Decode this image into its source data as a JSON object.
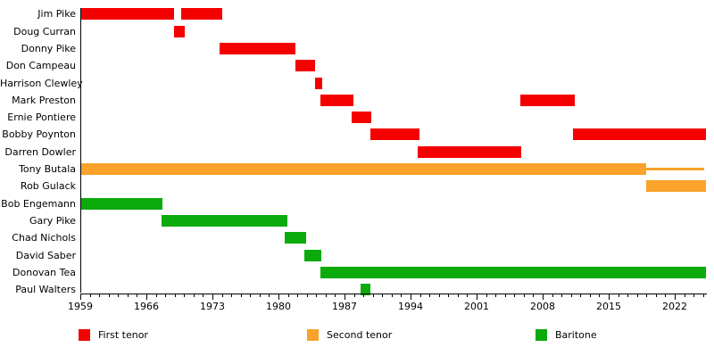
{
  "chart_data": {
    "type": "timeline",
    "title": "",
    "description": "Band membership timeline: horizontal colored bars per member by role over years",
    "x_axis": {
      "min": 1959,
      "max": 2025.4,
      "minor_tick_interval": 1,
      "major_tick_interval": 7,
      "major_tick_labels": [
        "1959",
        "1966",
        "1973",
        "1980",
        "1987",
        "1994",
        "2001",
        "2008",
        "2015",
        "2022"
      ]
    },
    "roles": {
      "first_tenor": {
        "label": "First tenor",
        "color": "#f40000"
      },
      "second_tenor": {
        "label": "Second tenor",
        "color": "#faa22a"
      },
      "baritone": {
        "label": "Baritone",
        "color": "#0cab0c"
      }
    },
    "members": [
      {
        "name": "Jim Pike",
        "role": "first_tenor",
        "segments": [
          {
            "start": 1959,
            "end": 1968.9
          },
          {
            "start": 1969.7,
            "end": 1974
          }
        ]
      },
      {
        "name": "Doug Curran",
        "role": "first_tenor",
        "segments": [
          {
            "start": 1968.9,
            "end": 1970.1
          }
        ]
      },
      {
        "name": "Donny Pike",
        "role": "first_tenor",
        "segments": [
          {
            "start": 1973.8,
            "end": 1981.8
          }
        ]
      },
      {
        "name": "Don Campeau",
        "role": "first_tenor",
        "segments": [
          {
            "start": 1981.8,
            "end": 1983.9
          }
        ]
      },
      {
        "name": "Harrison Clewley",
        "role": "first_tenor",
        "segments": [
          {
            "start": 1983.9,
            "end": 1984.6
          }
        ]
      },
      {
        "name": "Mark Preston",
        "role": "first_tenor",
        "segments": [
          {
            "start": 1984.4,
            "end": 1987.9
          },
          {
            "start": 2005.6,
            "end": 2011.4
          }
        ]
      },
      {
        "name": "Ernie Pontiere",
        "role": "first_tenor",
        "segments": [
          {
            "start": 1987.8,
            "end": 1989.8
          }
        ]
      },
      {
        "name": "Bobby Poynton",
        "role": "first_tenor",
        "segments": [
          {
            "start": 1989.7,
            "end": 1994.9
          },
          {
            "start": 2011.2,
            "end": 2025.3
          }
        ]
      },
      {
        "name": "Darren Dowler",
        "role": "first_tenor",
        "segments": [
          {
            "start": 1994.8,
            "end": 2005.7
          }
        ]
      },
      {
        "name": "Tony Butala",
        "role": "second_tenor",
        "segments": [
          {
            "start": 1959,
            "end": 2019
          },
          {
            "start": 2019,
            "end": 2025.1,
            "style": "thin"
          }
        ]
      },
      {
        "name": "Rob Gulack",
        "role": "second_tenor",
        "segments": [
          {
            "start": 2019,
            "end": 2025.3
          }
        ]
      },
      {
        "name": "Bob Engemann",
        "role": "baritone",
        "segments": [
          {
            "start": 1959,
            "end": 1967.7
          }
        ]
      },
      {
        "name": "Gary Pike",
        "role": "baritone",
        "segments": [
          {
            "start": 1967.6,
            "end": 1980.9
          }
        ]
      },
      {
        "name": "Chad Nichols",
        "role": "baritone",
        "segments": [
          {
            "start": 1980.7,
            "end": 1982.9
          }
        ]
      },
      {
        "name": "David Saber",
        "role": "baritone",
        "segments": [
          {
            "start": 1982.7,
            "end": 1984.5
          }
        ]
      },
      {
        "name": "Donovan Tea",
        "role": "baritone",
        "segments": [
          {
            "start": 1984.4,
            "end": 2025.3
          }
        ]
      },
      {
        "name": "Paul Walters",
        "role": "baritone",
        "segments": [
          {
            "start": 1988.7,
            "end": 1989.7
          }
        ]
      }
    ],
    "legend": [
      {
        "label": "First tenor",
        "role": "first_tenor"
      },
      {
        "label": "Second tenor",
        "role": "second_tenor"
      },
      {
        "label": "Baritone",
        "role": "baritone"
      }
    ],
    "legend_position": "bottom",
    "grid": false
  }
}
